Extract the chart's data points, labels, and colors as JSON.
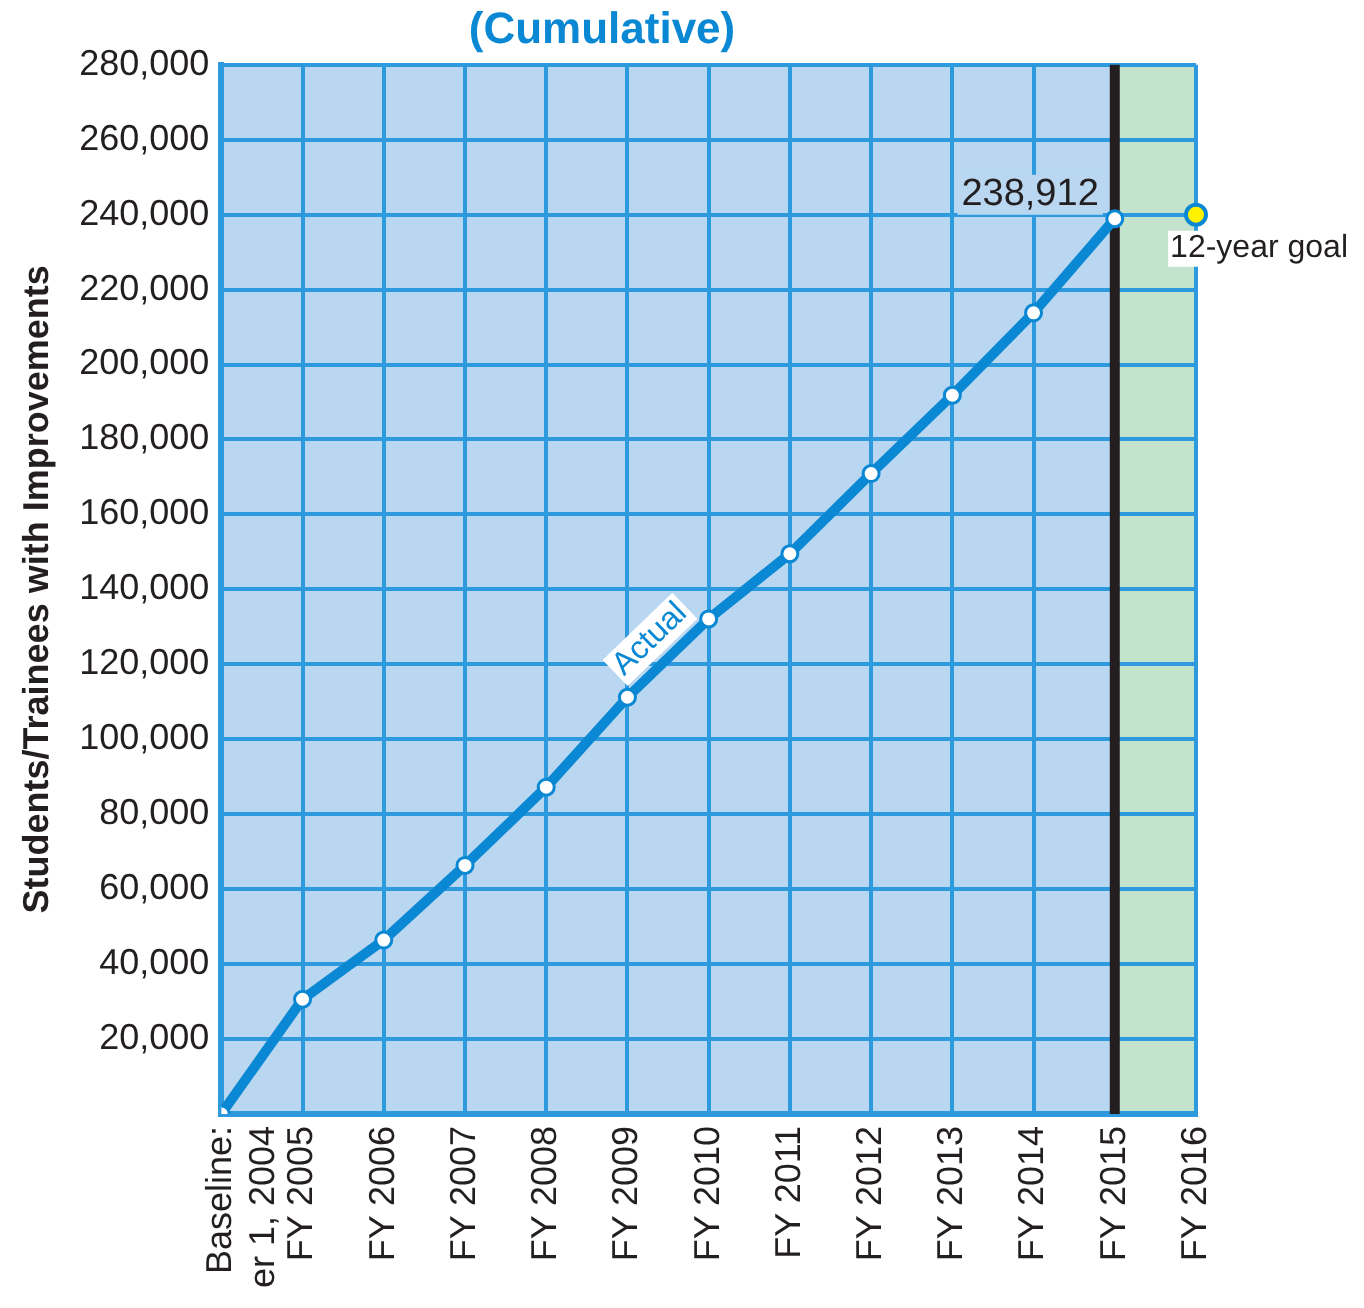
{
  "chart_data": {
    "type": "line",
    "title": "(Cumulative)",
    "ylabel": "Students/Trainees with Improvements",
    "categories": [
      "Baseline: er 1, 2004",
      "FY 2005",
      "FY 2006",
      "FY 2007",
      "FY 2008",
      "FY 2009",
      "FY 2010",
      "FY 2011",
      "FY 2012",
      "FY 2013",
      "FY 2014",
      "FY 2015",
      "FY 2016"
    ],
    "series": [
      {
        "name": "Actual",
        "color": "#0a88d3",
        "values": [
          0,
          30600,
          46400,
          66300,
          87200,
          111200,
          132100,
          149500,
          170900,
          191800,
          213800,
          238912,
          null
        ],
        "value_labels": [
          null,
          null,
          null,
          null,
          null,
          null,
          null,
          null,
          null,
          null,
          null,
          "238,912",
          null
        ],
        "marker": "circle"
      },
      {
        "name": "12-year goal",
        "type": "scatter",
        "color": "#fff200",
        "x": [
          "FY 2016"
        ],
        "values": [
          240000
        ],
        "marker": "circle"
      }
    ],
    "ylim": [
      0,
      280000
    ],
    "yticks": [
      {
        "value": 0,
        "label": null
      },
      {
        "value": 20000,
        "label": "20,000"
      },
      {
        "value": 40000,
        "label": "40,000"
      },
      {
        "value": 60000,
        "label": "60,000"
      },
      {
        "value": 80000,
        "label": "80,000"
      },
      {
        "value": 100000,
        "label": "100,000"
      },
      {
        "value": 120000,
        "label": "120,000"
      },
      {
        "value": 140000,
        "label": "140,000"
      },
      {
        "value": 160000,
        "label": "160,000"
      },
      {
        "value": 180000,
        "label": "180,000"
      },
      {
        "value": 200000,
        "label": "200,000"
      },
      {
        "value": 220000,
        "label": "220,000"
      },
      {
        "value": 240000,
        "label": "240,000"
      },
      {
        "value": 260000,
        "label": "260,000"
      },
      {
        "value": 280000,
        "label": "280,000"
      }
    ],
    "grid": true,
    "legend": false,
    "bands": [
      {
        "axis": "x",
        "from": "Baseline: er 1, 2004",
        "to": "FY 2015",
        "color": "#b9d7f1"
      },
      {
        "axis": "x",
        "from": "FY 2015",
        "to": "FY 2016",
        "color": "#c4e3cc"
      }
    ],
    "ref_lines": [
      {
        "axis": "x",
        "value": "FY 2015",
        "color": "#231f20"
      }
    ]
  }
}
